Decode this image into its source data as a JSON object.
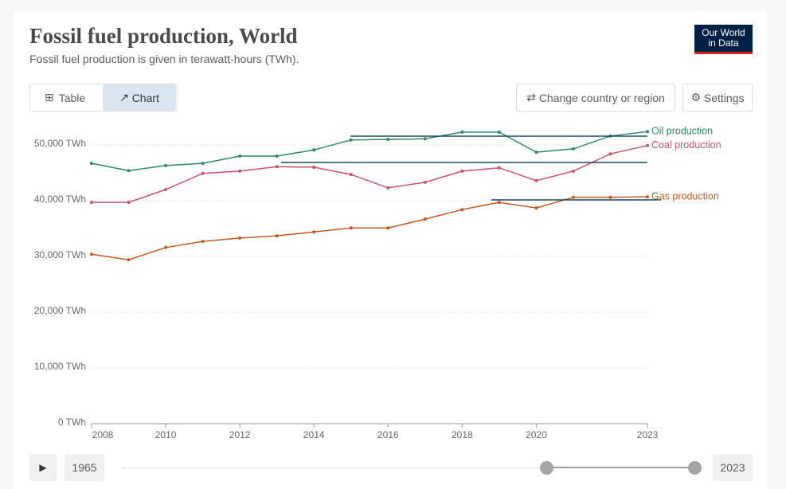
{
  "header": {
    "title": "Fossil fuel production, World",
    "subtitle": "Fossil fuel production is given in terawatt-hours (TWh).",
    "logo": [
      "Our World",
      "in Data"
    ]
  },
  "controls": {
    "table": "Table",
    "chart": "Chart",
    "change": "Change country or region",
    "settings": "Settings"
  },
  "timeline": {
    "start": "1965",
    "end": "2023"
  },
  "chart_data": {
    "type": "line",
    "x": [
      2008,
      2009,
      2010,
      2011,
      2012,
      2013,
      2014,
      2015,
      2016,
      2017,
      2018,
      2019,
      2020,
      2021,
      2022,
      2023
    ],
    "xlim": [
      2008,
      2023
    ],
    "xticks": [
      2008,
      2010,
      2012,
      2014,
      2016,
      2018,
      2020,
      2023
    ],
    "ylim": [
      0,
      53000
    ],
    "yticks": [
      {
        "value": 0,
        "label": "0 TWh"
      },
      {
        "value": 10000,
        "label": "10,000 TWh"
      },
      {
        "value": 20000,
        "label": "20,000 TWh"
      },
      {
        "value": 30000,
        "label": "30,000 TWh"
      },
      {
        "value": 40000,
        "label": "40,000 TWh"
      },
      {
        "value": 50000,
        "label": "50,000 TWh"
      }
    ],
    "grid": true,
    "series": [
      {
        "name": "Oil production",
        "color": "#2e8a67",
        "values": [
          46700,
          45400,
          46300,
          46700,
          48000,
          48000,
          49100,
          50900,
          51000,
          51100,
          52300,
          52300,
          48700,
          49300,
          51600,
          52400
        ]
      },
      {
        "name": "Coal production",
        "color": "#c8536a",
        "values": [
          39700,
          39700,
          42000,
          44900,
          45300,
          46100,
          46000,
          44700,
          42300,
          43300,
          45300,
          45900,
          43600,
          45300,
          48400,
          49900
        ]
      },
      {
        "name": "Gas production",
        "color": "#c05b1f",
        "values": [
          30400,
          29400,
          31600,
          32700,
          33300,
          33700,
          34400,
          35100,
          35100,
          36700,
          38400,
          39700,
          38700,
          40600,
          40600,
          40700
        ]
      }
    ]
  }
}
